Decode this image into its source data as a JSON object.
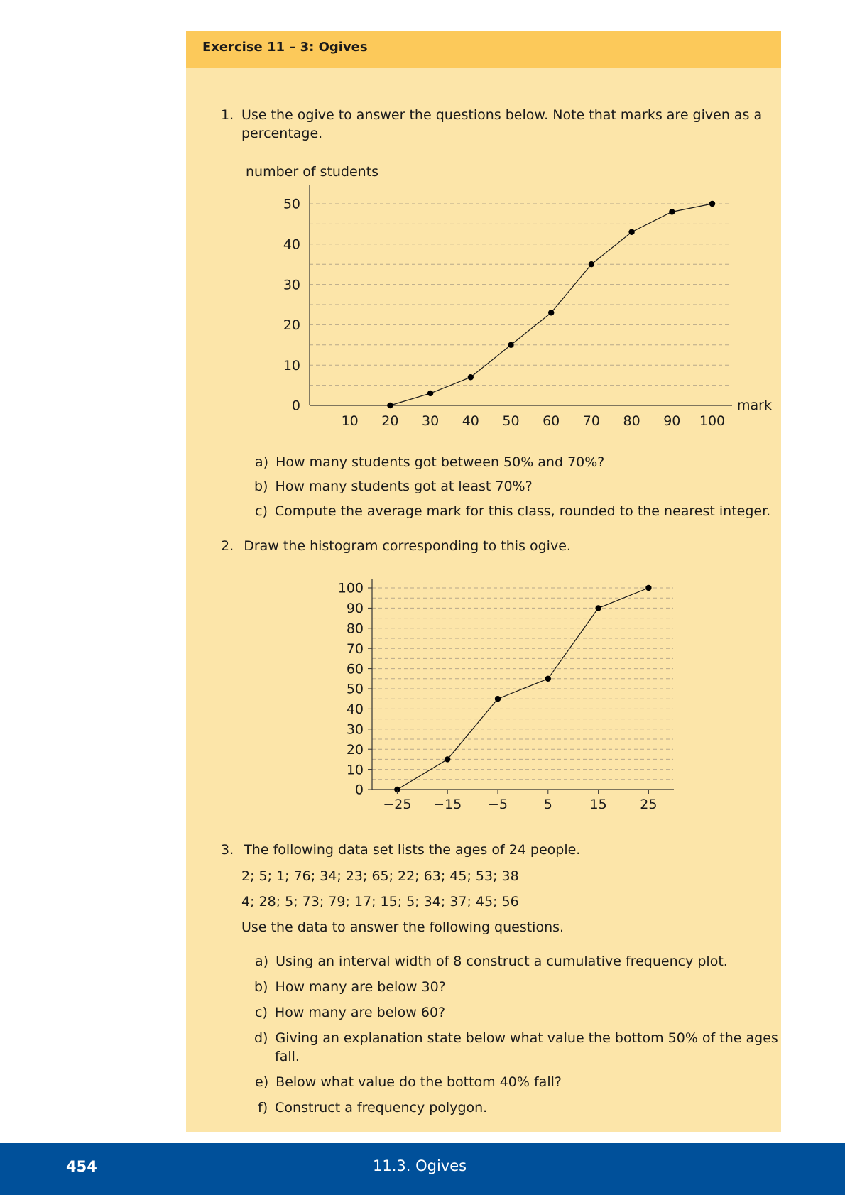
{
  "exercise": {
    "title": "Exercise 11 – 3: Ogives"
  },
  "question1": {
    "number": "1.",
    "text_line1": "Use the ogive to answer the questions below.  Note that marks are given as a",
    "text_line2": "percentage.",
    "subquestions": [
      {
        "label": "a)",
        "text": "How many students got between 50% and 70%?"
      },
      {
        "label": "b)",
        "text": "How many students got at least 70%?"
      },
      {
        "label": "c)",
        "text": "Compute the average mark for this class, rounded to the nearest integer."
      }
    ]
  },
  "question2": {
    "number": "2.",
    "text": "Draw the histogram corresponding to this ogive."
  },
  "question3": {
    "number": "3.",
    "text": "The following data set lists the ages of 24 people.",
    "data_line1": "2; 5; 1; 76; 34; 23; 65; 22; 63; 45; 53; 38",
    "data_line2": "4; 28; 5; 73; 79; 17; 15; 5; 34; 37; 45; 56",
    "instruction": "Use the data to answer the following questions.",
    "subquestions": [
      {
        "label": "a)",
        "text": "Using an interval width of 8 construct a cumulative frequency plot."
      },
      {
        "label": "b)",
        "text": "How many are below 30?"
      },
      {
        "label": "c)",
        "text": "How many are below 60?"
      },
      {
        "label": "d)",
        "text_line1": "Giving an explanation state below what value the bottom 50% of the ages",
        "text_line2": "fall."
      },
      {
        "label": "e)",
        "text": "Below what value do the bottom 40% fall?"
      },
      {
        "label": "f)",
        "text": "Construct a frequency polygon."
      }
    ]
  },
  "footer": {
    "page_number": "454",
    "section": "11.3.   Ogives"
  },
  "colors": {
    "box_background": "#fce5a9",
    "header_background": "#fcc95a",
    "footer_background": "#00509a"
  },
  "chart_data": [
    {
      "type": "line",
      "title": "",
      "xlabel": "mark",
      "ylabel": "number of students",
      "x_ticks": [
        "10",
        "20",
        "30",
        "40",
        "50",
        "60",
        "70",
        "80",
        "90",
        "100"
      ],
      "y_ticks": [
        "0",
        "10",
        "20",
        "30",
        "40",
        "50"
      ],
      "xlim": [
        0,
        100
      ],
      "ylim": [
        0,
        50
      ],
      "grid": "horizontal dashed every 5",
      "series": [
        {
          "x": [
            20,
            30,
            40,
            50,
            60,
            70,
            80,
            90,
            100
          ],
          "y": [
            0,
            3,
            7,
            15,
            23,
            35,
            43,
            48,
            50
          ]
        }
      ]
    },
    {
      "type": "line",
      "title": "",
      "xlabel": "",
      "ylabel": "",
      "x_ticks": [
        "−25",
        "−15",
        "−5",
        "5",
        "15",
        "25"
      ],
      "y_ticks": [
        "0",
        "10",
        "20",
        "30",
        "40",
        "50",
        "60",
        "70",
        "80",
        "90",
        "100"
      ],
      "xlim": [
        -30,
        30
      ],
      "ylim": [
        0,
        100
      ],
      "grid": "horizontal dashed every 5",
      "series": [
        {
          "x": [
            -25,
            -15,
            -5,
            5,
            15,
            25
          ],
          "y": [
            0,
            15,
            45,
            55,
            90,
            100
          ]
        }
      ]
    }
  ]
}
